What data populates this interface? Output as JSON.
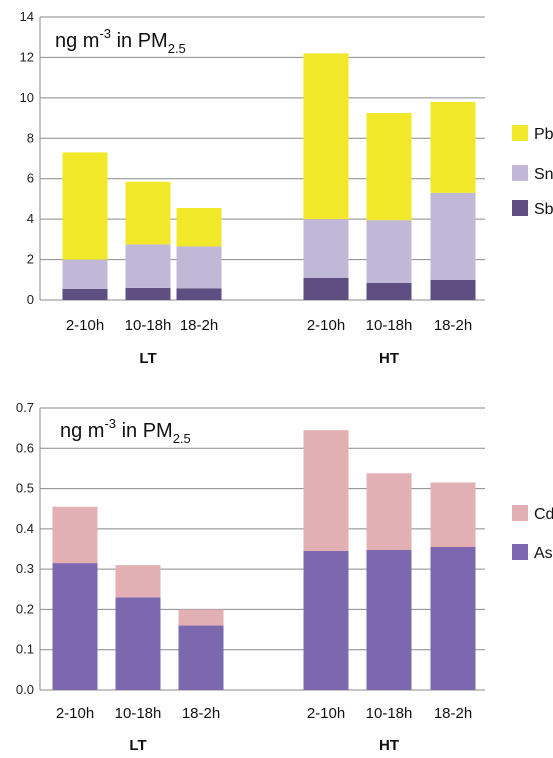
{
  "chart_data": [
    {
      "type": "bar",
      "stacked": true,
      "title": {
        "main": "ng m",
        "sup": "-3",
        "mid": " in PM",
        "sub": "2.5"
      },
      "groups": [
        {
          "label": "LT",
          "categories": [
            "2-10h",
            "10-18h",
            "18-2h"
          ]
        },
        {
          "label": "HT",
          "categories": [
            "2-10h",
            "10-18h",
            "18-2h"
          ]
        }
      ],
      "categories": [
        "2-10h",
        "10-18h",
        "18-2h",
        "2-10h",
        "10-18h",
        "18-2h"
      ],
      "series": [
        {
          "name": "Sb",
          "color": "#5e4e82",
          "values": [
            0.55,
            0.6,
            0.58,
            1.1,
            0.85,
            1.0
          ]
        },
        {
          "name": "Sn",
          "color": "#c1b8d8",
          "values": [
            1.45,
            2.15,
            2.07,
            2.9,
            3.1,
            4.3
          ]
        },
        {
          "name": "Pb",
          "color": "#f1e829",
          "values": [
            5.3,
            3.1,
            1.9,
            8.2,
            5.3,
            4.5
          ]
        }
      ],
      "ylim": [
        0,
        14
      ],
      "yticks": [
        "0",
        "2",
        "4",
        "6",
        "8",
        "10",
        "12",
        "14"
      ],
      "grid": true,
      "legend_position": "right"
    },
    {
      "type": "bar",
      "stacked": true,
      "title": {
        "main": "ng m",
        "sup": "-3",
        "mid": " in PM",
        "sub": "2.5"
      },
      "groups": [
        {
          "label": "LT",
          "categories": [
            "2-10h",
            "10-18h",
            "18-2h"
          ]
        },
        {
          "label": "HT",
          "categories": [
            "2-10h",
            "10-18h",
            "18-2h"
          ]
        }
      ],
      "categories": [
        "2-10h",
        "10-18h",
        "18-2h",
        "2-10h",
        "10-18h",
        "18-2h"
      ],
      "series": [
        {
          "name": "As",
          "color": "#7b68ae",
          "values": [
            0.315,
            0.23,
            0.16,
            0.345,
            0.348,
            0.355
          ]
        },
        {
          "name": "Cd",
          "color": "#e2b0b2",
          "values": [
            0.14,
            0.08,
            0.04,
            0.3,
            0.19,
            0.16
          ]
        }
      ],
      "ylim": [
        0,
        0.7
      ],
      "yticks": [
        "0.0",
        "0.1",
        "0.2",
        "0.3",
        "0.4",
        "0.5",
        "0.6",
        "0.7"
      ],
      "grid": true,
      "legend_position": "right"
    }
  ]
}
